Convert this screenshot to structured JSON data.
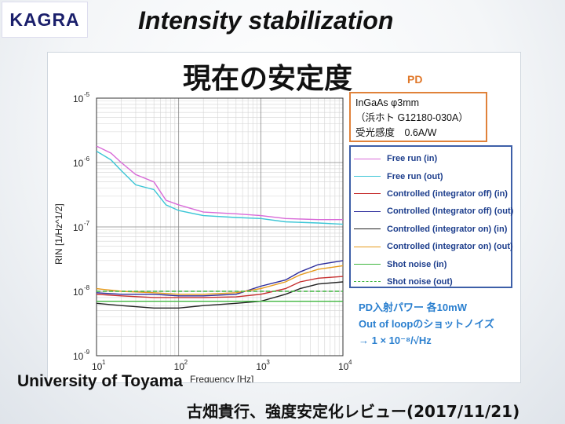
{
  "logo": {
    "text": "KAGRA"
  },
  "slide_title": "Intensity stabilization",
  "figure": {
    "heading": "現在の安定度",
    "pd_label": "PD",
    "pd_info": [
      "InGaAs  φ3mm",
      "（浜ホト G12180-030A）",
      "受光感度　0.6A/W"
    ],
    "notes": [
      "PD入射パワー 各10mW",
      "Out of loopのショットノイズ",
      "→  1 × 10⁻⁸/√Hz"
    ]
  },
  "chart_data": {
    "type": "line",
    "xscale": "log",
    "yscale": "log",
    "xlim": [
      10,
      10000
    ],
    "ylim": [
      1e-09,
      1e-05
    ],
    "xlabel": "Frequency [Hz]",
    "ylabel": "RIN [1/Hz^1/2]",
    "x_ticks": [
      "10",
      "10",
      "10",
      "10"
    ],
    "x_tick_exps": [
      "1",
      "2",
      "3",
      "4"
    ],
    "y_ticks": [
      "10",
      "10",
      "10",
      "10",
      "10"
    ],
    "y_tick_exps": [
      "-9",
      "-8",
      "-7",
      "-6",
      "-5"
    ],
    "series": [
      {
        "name": "Free run (in)",
        "color": "#d86ad8",
        "dash": false,
        "x": [
          10,
          15,
          20,
          30,
          50,
          70,
          100,
          200,
          500,
          1000,
          2000,
          5000,
          10000
        ],
        "y": [
          1.8e-06,
          1.4e-06,
          1e-06,
          6.5e-07,
          5e-07,
          2.6e-07,
          2.2e-07,
          1.7e-07,
          1.6e-07,
          1.5e-07,
          1.35e-07,
          1.3e-07,
          1.3e-07
        ]
      },
      {
        "name": "Free run (out)",
        "color": "#3cc6d6",
        "dash": false,
        "x": [
          10,
          15,
          20,
          30,
          50,
          70,
          100,
          200,
          500,
          1000,
          2000,
          5000,
          10000
        ],
        "y": [
          1.5e-06,
          1.1e-06,
          7.5e-07,
          4.5e-07,
          3.8e-07,
          2.2e-07,
          1.8e-07,
          1.5e-07,
          1.4e-07,
          1.35e-07,
          1.2e-07,
          1.15e-07,
          1.1e-07
        ]
      },
      {
        "name": "Controlled (integrator off) (in)",
        "color": "#c62d2d",
        "dash": false,
        "x": [
          10,
          20,
          50,
          100,
          200,
          500,
          1000,
          2000,
          3000,
          5000,
          10000
        ],
        "y": [
          9e-09,
          8.5e-09,
          8e-09,
          8e-09,
          8e-09,
          8.2e-09,
          9e-09,
          1.1e-08,
          1.4e-08,
          1.6e-08,
          1.7e-08
        ]
      },
      {
        "name": "Controlled (Integrator off) (out)",
        "color": "#2c2c9c",
        "dash": false,
        "x": [
          10,
          20,
          50,
          100,
          200,
          500,
          1000,
          2000,
          3000,
          5000,
          10000
        ],
        "y": [
          9.5e-09,
          9e-09,
          9e-09,
          8.5e-09,
          8.5e-09,
          9e-09,
          1.2e-08,
          1.5e-08,
          2e-08,
          2.6e-08,
          3e-08
        ]
      },
      {
        "name": "Controlled (integrator on) (in)",
        "color": "#222222",
        "dash": false,
        "x": [
          10,
          20,
          50,
          100,
          200,
          500,
          1000,
          2000,
          3000,
          5000,
          10000
        ],
        "y": [
          6.5e-09,
          6e-09,
          5.5e-09,
          5.5e-09,
          6e-09,
          6.5e-09,
          7e-09,
          9e-09,
          1.1e-08,
          1.3e-08,
          1.4e-08
        ]
      },
      {
        "name": "Controlled (integrator on) (out)",
        "color": "#e69a1c",
        "dash": false,
        "x": [
          10,
          20,
          50,
          100,
          200,
          500,
          1000,
          2000,
          3000,
          5000,
          10000
        ],
        "y": [
          1.1e-08,
          1e-08,
          9.5e-09,
          9e-09,
          9e-09,
          9.5e-09,
          1.1e-08,
          1.4e-08,
          1.8e-08,
          2.2e-08,
          2.5e-08
        ]
      },
      {
        "name": "Shot noise (in)",
        "color": "#3fb63f",
        "dash": false,
        "x": [
          10,
          10000
        ],
        "y": [
          7e-09,
          7e-09
        ]
      },
      {
        "name": "Shot noise (out)",
        "color": "#3fb63f",
        "dash": true,
        "x": [
          10,
          10000
        ],
        "y": [
          1e-08,
          1e-08
        ]
      }
    ]
  },
  "footer": {
    "university": "University of Toyama",
    "citation": "古畑貴行、強度安定化レビュー(2017/11/21)"
  }
}
